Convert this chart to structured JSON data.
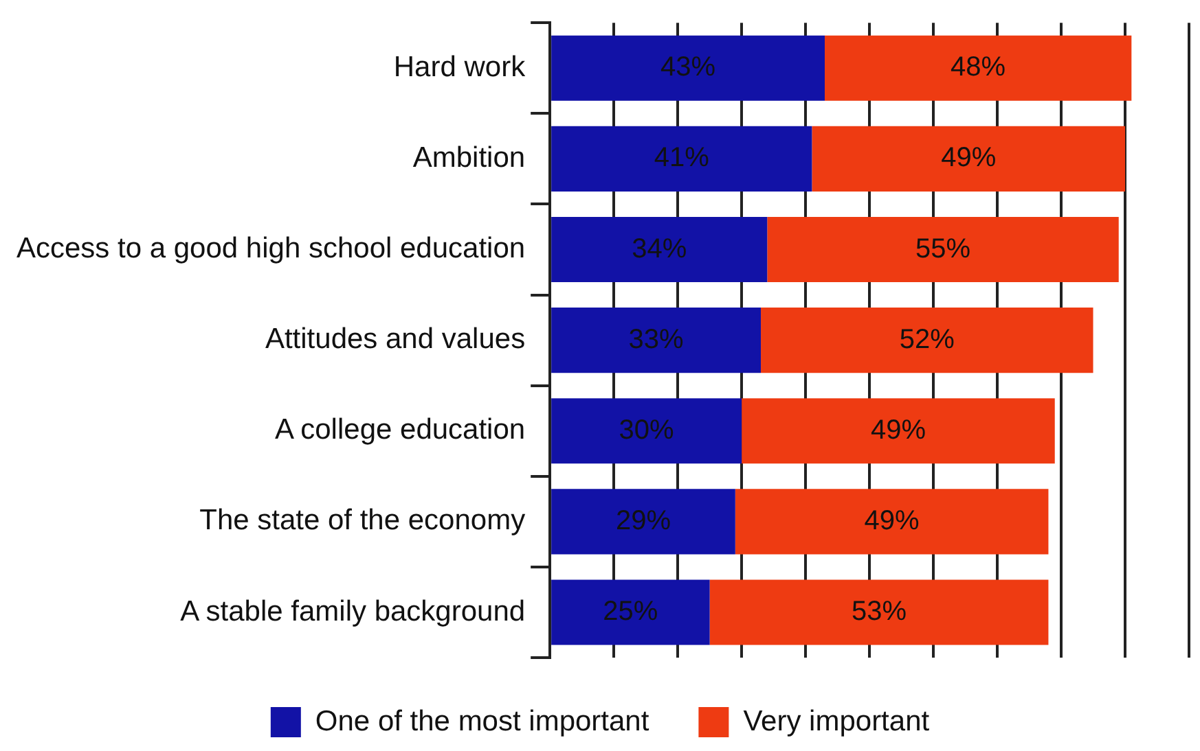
{
  "chart_data": {
    "type": "bar",
    "orientation": "horizontal",
    "stacked": true,
    "categories": [
      "Hard work",
      "Ambition",
      "Access to a good high school education",
      "Attitudes and values",
      "A college education",
      "The state of the economy",
      "A stable family background"
    ],
    "series": [
      {
        "name": "One of the most important",
        "color": "#1212a6",
        "values": [
          43,
          41,
          34,
          33,
          30,
          29,
          25
        ],
        "value_labels": [
          "43%",
          "41%",
          "34%",
          "33%",
          "30%",
          "29%",
          "25%"
        ]
      },
      {
        "name": "Very important",
        "color": "#ee3b12",
        "values": [
          48,
          49,
          55,
          52,
          49,
          49,
          53
        ],
        "value_labels": [
          "48%",
          "49%",
          "55%",
          "52%",
          "49%",
          "49%",
          "53%"
        ]
      }
    ],
    "tick_labels": "y",
    "grid": "x",
    "legend": "bottom"
  }
}
